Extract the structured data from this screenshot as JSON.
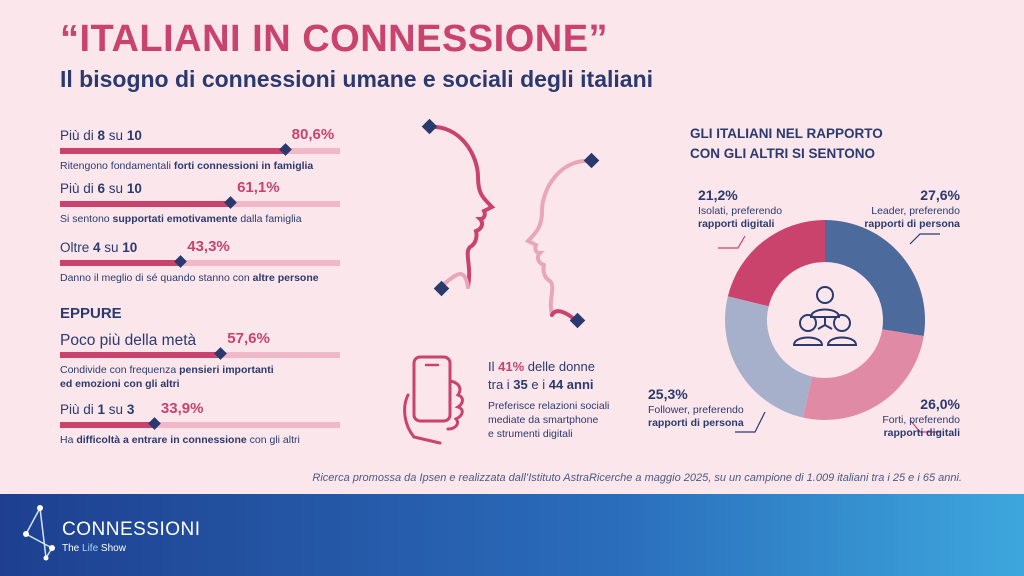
{
  "header": {
    "title": "“ITALIANI IN CONNESSIONE”",
    "subtitle": "Il bisogno di connessioni umane e sociali degli italiani"
  },
  "stats": [
    {
      "head_pre": "Più di ",
      "head_b1": "8",
      "head_mid": " su ",
      "head_b2": "10",
      "pct_label": "80,6%",
      "value": 80.6,
      "desc_pre": "Ritengono fondamentali ",
      "desc_b": "forti connessioni in famiglia",
      "desc_post": ""
    },
    {
      "head_pre": "Più di ",
      "head_b1": "6",
      "head_mid": " su ",
      "head_b2": "10",
      "pct_label": "61,1%",
      "value": 61.1,
      "desc_pre": "Si sentono ",
      "desc_b": "supportati emotivamente",
      "desc_post": " dalla famiglia"
    },
    {
      "head_pre": "Oltre ",
      "head_b1": "4",
      "head_mid": " su ",
      "head_b2": "10",
      "pct_label": "43,3%",
      "value": 43.3,
      "desc_pre": "Danno il meglio di sé quando stanno con ",
      "desc_b": "altre persone",
      "desc_post": ""
    }
  ],
  "eppure": {
    "label": "EPPURE",
    "items": [
      {
        "head": "Poco più della metà",
        "pct_label": "57,6%",
        "value": 57.6,
        "desc_pre": "Condivide con frequenza ",
        "desc_b": "pensieri importanti",
        "desc_line2": "ed emozioni con gli altri"
      },
      {
        "head_pre": "Più di ",
        "head_b1": "1",
        "head_mid": " su ",
        "head_b2": "3",
        "pct_label": "33,9%",
        "value": 33.9,
        "desc_pre": "Ha ",
        "desc_b": "difficoltà a entrare in connessione",
        "desc_post": " con gli altri"
      }
    ]
  },
  "phone": {
    "l1_pre": "Il ",
    "l1_pct": "41%",
    "l1_post": " delle donne",
    "l2_pre": "tra i ",
    "l2_b1": "35",
    "l2_mid": " e i ",
    "l2_b2": "44 anni",
    "sub1": "Preferisce relazioni sociali",
    "sub2": "mediate da smartphone",
    "sub3": "e strumenti digitali"
  },
  "donut": {
    "title_line1": "GLI ITALIANI NEL RAPPORTO",
    "title_line2": "CON GLI ALTRI SI SENTONO"
  },
  "chart_data": {
    "type": "pie",
    "title": "GLI ITALIANI NEL RAPPORTO CON GLI ALTRI SI SENTONO",
    "slices": [
      {
        "label": "Leader, preferendo rapporti di persona",
        "value": 27.6,
        "value_label": "27,6%",
        "line1": "Leader, preferendo",
        "line2": "rapporti di persona",
        "color": "#4d6a9c"
      },
      {
        "label": "Forti, preferendo rapporti digitali",
        "value": 26.0,
        "value_label": "26,0%",
        "line1": "Forti, preferendo",
        "line2": "rapporti digitali",
        "color": "#e18aa6"
      },
      {
        "label": "Follower, preferendo rapporti di persona",
        "value": 25.3,
        "value_label": "25,3%",
        "line1": "Follower, preferendo",
        "line2": "rapporti di persona",
        "color": "#a7b0cb"
      },
      {
        "label": "Isolati, preferendo rapporti digitali",
        "value": 21.2,
        "value_label": "21,2%",
        "line1": "Isolati, preferendo",
        "line2": "rapporti digitali",
        "color": "#c9436c"
      }
    ]
  },
  "footnote": "Ricerca promossa da Ipsen e realizzata dall’Istituto AstraRicerche a maggio 2025, su un campione di 1.009 italiani tra i 25 e i 65 anni.",
  "brand": {
    "name": "CONNESSIONI",
    "sub_pre": "The ",
    "sub_life": "Life",
    "sub_post": " Show"
  },
  "colors": {
    "accent": "#c9436c",
    "navy": "#2a3a6e",
    "background": "#fbe6ec"
  }
}
